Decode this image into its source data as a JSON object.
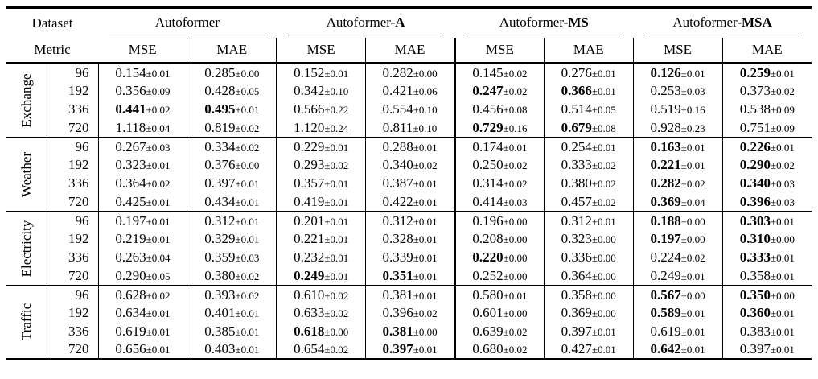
{
  "colors": {
    "background": "#ffffff",
    "text": "#000000",
    "rule": "#000000"
  },
  "table": {
    "corner": {
      "row1": "Dataset",
      "row2": "Metric"
    },
    "models": [
      {
        "prefix": "Autoformer",
        "suffix": ""
      },
      {
        "prefix": "Autoformer-",
        "suffix": "A"
      },
      {
        "prefix": "Autoformer-",
        "suffix": "MS"
      },
      {
        "prefix": "Autoformer-",
        "suffix": "MSA"
      }
    ],
    "metric_labels": [
      "MSE",
      "MAE"
    ],
    "groups": [
      {
        "dataset": "Exchange",
        "rows": [
          {
            "horizon": "96",
            "cells": [
              {
                "value": "0.154",
                "pm": "±0.01",
                "bold": false
              },
              {
                "value": "0.285",
                "pm": "±0.00",
                "bold": false
              },
              {
                "value": "0.152",
                "pm": "±0.01",
                "bold": false
              },
              {
                "value": "0.282",
                "pm": "±0.00",
                "bold": false
              },
              {
                "value": "0.145",
                "pm": "±0.02",
                "bold": false
              },
              {
                "value": "0.276",
                "pm": "±0.01",
                "bold": false
              },
              {
                "value": "0.126",
                "pm": "±0.01",
                "bold": true
              },
              {
                "value": "0.259",
                "pm": "±0.01",
                "bold": true
              }
            ]
          },
          {
            "horizon": "192",
            "cells": [
              {
                "value": "0.356",
                "pm": "±0.09",
                "bold": false
              },
              {
                "value": "0.428",
                "pm": "±0.05",
                "bold": false
              },
              {
                "value": "0.342",
                "pm": "±0.10",
                "bold": false
              },
              {
                "value": "0.421",
                "pm": "±0.06",
                "bold": false
              },
              {
                "value": "0.247",
                "pm": "±0.02",
                "bold": true
              },
              {
                "value": "0.366",
                "pm": "±0.01",
                "bold": true
              },
              {
                "value": "0.253",
                "pm": "±0.03",
                "bold": false
              },
              {
                "value": "0.373",
                "pm": "±0.02",
                "bold": false
              }
            ]
          },
          {
            "horizon": "336",
            "cells": [
              {
                "value": "0.441",
                "pm": "±0.02",
                "bold": true
              },
              {
                "value": "0.495",
                "pm": "±0.01",
                "bold": true
              },
              {
                "value": "0.566",
                "pm": "±0.22",
                "bold": false
              },
              {
                "value": "0.554",
                "pm": "±0.10",
                "bold": false
              },
              {
                "value": "0.456",
                "pm": "±0.08",
                "bold": false
              },
              {
                "value": "0.514",
                "pm": "±0.05",
                "bold": false
              },
              {
                "value": "0.519",
                "pm": "±0.16",
                "bold": false
              },
              {
                "value": "0.538",
                "pm": "±0.09",
                "bold": false
              }
            ]
          },
          {
            "horizon": "720",
            "cells": [
              {
                "value": "1.118",
                "pm": "±0.04",
                "bold": false
              },
              {
                "value": "0.819",
                "pm": "±0.02",
                "bold": false
              },
              {
                "value": "1.120",
                "pm": "±0.24",
                "bold": false
              },
              {
                "value": "0.811",
                "pm": "±0.10",
                "bold": false
              },
              {
                "value": "0.729",
                "pm": "±0.16",
                "bold": true
              },
              {
                "value": "0.679",
                "pm": "±0.08",
                "bold": true
              },
              {
                "value": "0.928",
                "pm": "±0.23",
                "bold": false
              },
              {
                "value": "0.751",
                "pm": "±0.09",
                "bold": false
              }
            ]
          }
        ]
      },
      {
        "dataset": "Weather",
        "rows": [
          {
            "horizon": "96",
            "cells": [
              {
                "value": "0.267",
                "pm": "±0.03",
                "bold": false
              },
              {
                "value": "0.334",
                "pm": "±0.02",
                "bold": false
              },
              {
                "value": "0.229",
                "pm": "±0.01",
                "bold": false
              },
              {
                "value": "0.288",
                "pm": "±0.01",
                "bold": false
              },
              {
                "value": "0.174",
                "pm": "±0.01",
                "bold": false
              },
              {
                "value": "0.254",
                "pm": "±0.01",
                "bold": false
              },
              {
                "value": "0.163",
                "pm": "±0.01",
                "bold": true
              },
              {
                "value": "0.226",
                "pm": "±0.01",
                "bold": true
              }
            ]
          },
          {
            "horizon": "192",
            "cells": [
              {
                "value": "0.323",
                "pm": "±0.01",
                "bold": false
              },
              {
                "value": "0.376",
                "pm": "±0.00",
                "bold": false
              },
              {
                "value": "0.293",
                "pm": "±0.02",
                "bold": false
              },
              {
                "value": "0.340",
                "pm": "±0.02",
                "bold": false
              },
              {
                "value": "0.250",
                "pm": "±0.02",
                "bold": false
              },
              {
                "value": "0.333",
                "pm": "±0.02",
                "bold": false
              },
              {
                "value": "0.221",
                "pm": "±0.01",
                "bold": true
              },
              {
                "value": "0.290",
                "pm": "±0.02",
                "bold": true
              }
            ]
          },
          {
            "horizon": "336",
            "cells": [
              {
                "value": "0.364",
                "pm": "±0.02",
                "bold": false
              },
              {
                "value": "0.397",
                "pm": "±0.01",
                "bold": false
              },
              {
                "value": "0.357",
                "pm": "±0.01",
                "bold": false
              },
              {
                "value": "0.387",
                "pm": "±0.01",
                "bold": false
              },
              {
                "value": "0.314",
                "pm": "±0.02",
                "bold": false
              },
              {
                "value": "0.380",
                "pm": "±0.02",
                "bold": false
              },
              {
                "value": "0.282",
                "pm": "±0.02",
                "bold": true
              },
              {
                "value": "0.340",
                "pm": "±0.03",
                "bold": true
              }
            ]
          },
          {
            "horizon": "720",
            "cells": [
              {
                "value": "0.425",
                "pm": "±0.01",
                "bold": false
              },
              {
                "value": "0.434",
                "pm": "±0.01",
                "bold": false
              },
              {
                "value": "0.419",
                "pm": "±0.01",
                "bold": false
              },
              {
                "value": "0.422",
                "pm": "±0.01",
                "bold": false
              },
              {
                "value": "0.414",
                "pm": "±0.03",
                "bold": false
              },
              {
                "value": "0.457",
                "pm": "±0.02",
                "bold": false
              },
              {
                "value": "0.369",
                "pm": "±0.04",
                "bold": true
              },
              {
                "value": "0.396",
                "pm": "±0.03",
                "bold": true
              }
            ]
          }
        ]
      },
      {
        "dataset": "Electricity",
        "rows": [
          {
            "horizon": "96",
            "cells": [
              {
                "value": "0.197",
                "pm": "±0.01",
                "bold": false
              },
              {
                "value": "0.312",
                "pm": "±0.01",
                "bold": false
              },
              {
                "value": "0.201",
                "pm": "±0.01",
                "bold": false
              },
              {
                "value": "0.312",
                "pm": "±0.01",
                "bold": false
              },
              {
                "value": "0.196",
                "pm": "±0.00",
                "bold": false
              },
              {
                "value": "0.312",
                "pm": "±0.01",
                "bold": false
              },
              {
                "value": "0.188",
                "pm": "±0.00",
                "bold": true
              },
              {
                "value": "0.303",
                "pm": "±0.01",
                "bold": true
              }
            ]
          },
          {
            "horizon": "192",
            "cells": [
              {
                "value": "0.219",
                "pm": "±0.01",
                "bold": false
              },
              {
                "value": "0.329",
                "pm": "±0.01",
                "bold": false
              },
              {
                "value": "0.221",
                "pm": "±0.01",
                "bold": false
              },
              {
                "value": "0.328",
                "pm": "±0.01",
                "bold": false
              },
              {
                "value": "0.208",
                "pm": "±0.00",
                "bold": false
              },
              {
                "value": "0.323",
                "pm": "±0.00",
                "bold": false
              },
              {
                "value": "0.197",
                "pm": "±0.00",
                "bold": true
              },
              {
                "value": "0.310",
                "pm": "±0.00",
                "bold": true
              }
            ]
          },
          {
            "horizon": "336",
            "cells": [
              {
                "value": "0.263",
                "pm": "±0.04",
                "bold": false
              },
              {
                "value": "0.359",
                "pm": "±0.03",
                "bold": false
              },
              {
                "value": "0.232",
                "pm": "±0.01",
                "bold": false
              },
              {
                "value": "0.339",
                "pm": "±0.01",
                "bold": false
              },
              {
                "value": "0.220",
                "pm": "±0.00",
                "bold": true
              },
              {
                "value": "0.336",
                "pm": "±0.00",
                "bold": false
              },
              {
                "value": "0.224",
                "pm": "±0.02",
                "bold": false
              },
              {
                "value": "0.333",
                "pm": "±0.01",
                "bold": true
              }
            ]
          },
          {
            "horizon": "720",
            "cells": [
              {
                "value": "0.290",
                "pm": "±0.05",
                "bold": false
              },
              {
                "value": "0.380",
                "pm": "±0.02",
                "bold": false
              },
              {
                "value": "0.249",
                "pm": "±0.01",
                "bold": true
              },
              {
                "value": "0.351",
                "pm": "±0.01",
                "bold": true
              },
              {
                "value": "0.252",
                "pm": "±0.00",
                "bold": false
              },
              {
                "value": "0.364",
                "pm": "±0.00",
                "bold": false
              },
              {
                "value": "0.249",
                "pm": "±0.01",
                "bold": false
              },
              {
                "value": "0.358",
                "pm": "±0.01",
                "bold": false
              }
            ]
          }
        ]
      },
      {
        "dataset": "Traffic",
        "rows": [
          {
            "horizon": "96",
            "cells": [
              {
                "value": "0.628",
                "pm": "±0.02",
                "bold": false
              },
              {
                "value": "0.393",
                "pm": "±0.02",
                "bold": false
              },
              {
                "value": "0.610",
                "pm": "±0.02",
                "bold": false
              },
              {
                "value": "0.381",
                "pm": "±0.01",
                "bold": false
              },
              {
                "value": "0.580",
                "pm": "±0.01",
                "bold": false
              },
              {
                "value": "0.358",
                "pm": "±0.00",
                "bold": false
              },
              {
                "value": "0.567",
                "pm": "±0.00",
                "bold": true
              },
              {
                "value": "0.350",
                "pm": "±0.00",
                "bold": true
              }
            ]
          },
          {
            "horizon": "192",
            "cells": [
              {
                "value": "0.634",
                "pm": "±0.01",
                "bold": false
              },
              {
                "value": "0.401",
                "pm": "±0.01",
                "bold": false
              },
              {
                "value": "0.633",
                "pm": "±0.02",
                "bold": false
              },
              {
                "value": "0.396",
                "pm": "±0.02",
                "bold": false
              },
              {
                "value": "0.601",
                "pm": "±0.00",
                "bold": false
              },
              {
                "value": "0.369",
                "pm": "±0.00",
                "bold": false
              },
              {
                "value": "0.589",
                "pm": "±0.01",
                "bold": true
              },
              {
                "value": "0.360",
                "pm": "±0.01",
                "bold": true
              }
            ]
          },
          {
            "horizon": "336",
            "cells": [
              {
                "value": "0.619",
                "pm": "±0.01",
                "bold": false
              },
              {
                "value": "0.385",
                "pm": "±0.01",
                "bold": false
              },
              {
                "value": "0.618",
                "pm": "±0.00",
                "bold": true
              },
              {
                "value": "0.381",
                "pm": "±0.00",
                "bold": true
              },
              {
                "value": "0.639",
                "pm": "±0.02",
                "bold": false
              },
              {
                "value": "0.397",
                "pm": "±0.01",
                "bold": false
              },
              {
                "value": "0.619",
                "pm": "±0.01",
                "bold": false
              },
              {
                "value": "0.383",
                "pm": "±0.01",
                "bold": false
              }
            ]
          },
          {
            "horizon": "720",
            "cells": [
              {
                "value": "0.656",
                "pm": "±0.01",
                "bold": false
              },
              {
                "value": "0.403",
                "pm": "±0.01",
                "bold": false
              },
              {
                "value": "0.654",
                "pm": "±0.02",
                "bold": false
              },
              {
                "value": "0.397",
                "pm": "±0.01",
                "bold": true
              },
              {
                "value": "0.680",
                "pm": "±0.02",
                "bold": false
              },
              {
                "value": "0.427",
                "pm": "±0.01",
                "bold": false
              },
              {
                "value": "0.642",
                "pm": "±0.01",
                "bold": true
              },
              {
                "value": "0.397",
                "pm": "±0.01",
                "bold": false
              }
            ]
          }
        ]
      }
    ]
  }
}
